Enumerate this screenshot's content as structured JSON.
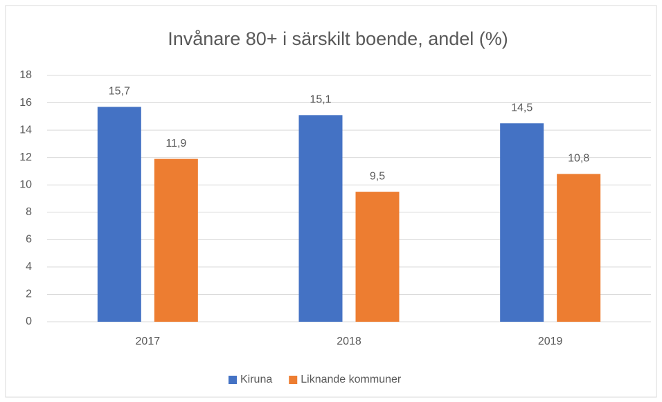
{
  "chart_data": {
    "type": "bar",
    "title": "Invånare 80+ i särskilt boende, andel (%)",
    "categories": [
      "2017",
      "2018",
      "2019"
    ],
    "series": [
      {
        "name": "Kiruna",
        "color": "#4472c4",
        "values": [
          15.7,
          15.1,
          14.5
        ],
        "value_labels": [
          "15,7",
          "15,1",
          "14,5"
        ]
      },
      {
        "name": "Liknande kommuner",
        "color": "#ed7d31",
        "values": [
          11.9,
          9.5,
          10.8
        ],
        "value_labels": [
          "11,9",
          "9,5",
          "10,8"
        ]
      }
    ],
    "ylim": [
      0,
      18
    ],
    "yticks": [
      0,
      2,
      4,
      6,
      8,
      10,
      12,
      14,
      16,
      18
    ],
    "grid": true,
    "legend": "bottom"
  }
}
